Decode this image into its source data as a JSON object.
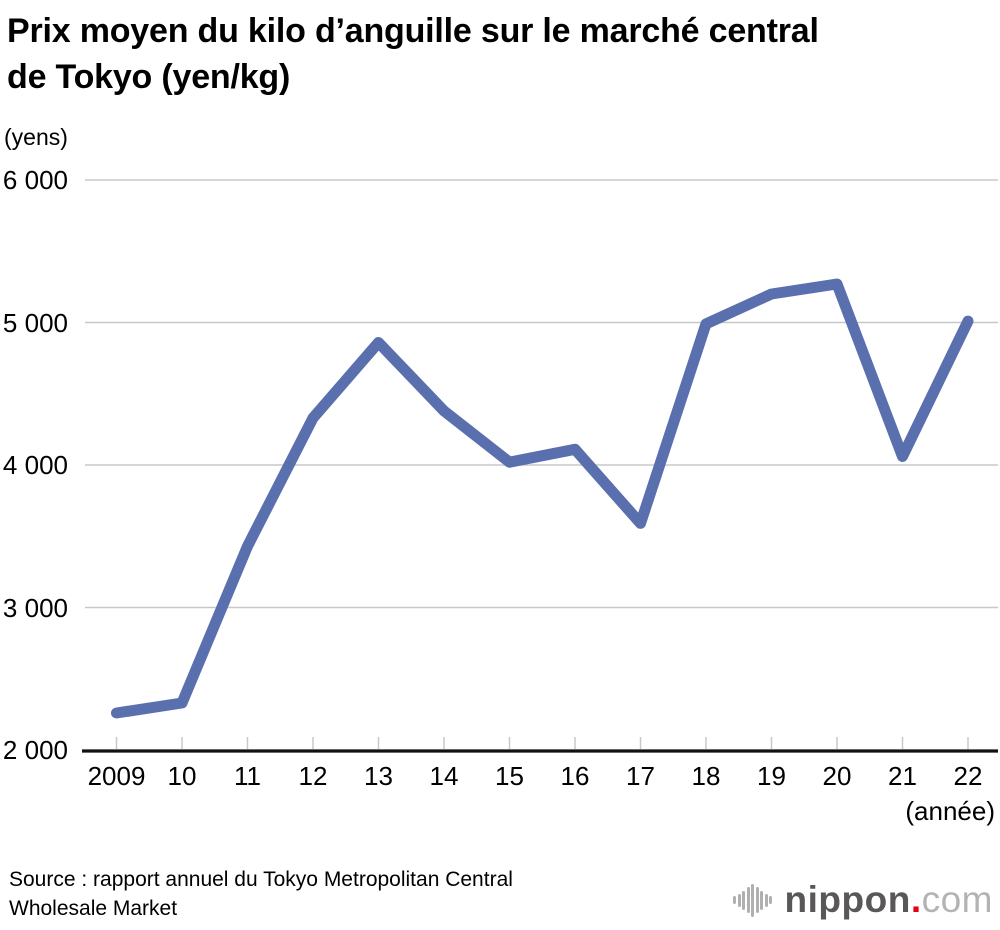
{
  "title": {
    "line1": "Prix moyen du kilo d’anguille sur le marché central",
    "line2": "de Tokyo (yen/kg)"
  },
  "y_unit": "(yens)",
  "x_unit": "(année)",
  "source": {
    "line1": "Source : rapport annuel du Tokyo Metropolitan Central",
    "line2": "Wholesale Market"
  },
  "logo": {
    "brand": "nippon",
    "dot": ".",
    "tld": "com"
  },
  "colors": {
    "line": "#5a6fad",
    "grid": "#c8c8c8",
    "tick": "#c8c8c8",
    "axis": "#111111",
    "text": "#000000",
    "logo_brand": "#595757",
    "logo_tld": "#b3b3b3",
    "logo_dot": "#e60012",
    "logo_bars": "#b0b0b0"
  },
  "chart_data": {
    "type": "line",
    "title": "Prix moyen du kilo d’anguille sur le marché central de Tokyo (yen/kg)",
    "ylabel": "(yens)",
    "xlabel": "(année)",
    "x": [
      2009,
      2010,
      2011,
      2012,
      2013,
      2014,
      2015,
      2016,
      2017,
      2018,
      2019,
      2020,
      2021,
      2022
    ],
    "x_tick_labels": [
      "2009",
      "10",
      "11",
      "12",
      "13",
      "14",
      "15",
      "16",
      "17",
      "18",
      "19",
      "20",
      "21",
      "22"
    ],
    "values": [
      2260,
      2330,
      3430,
      4330,
      4860,
      4380,
      4020,
      4110,
      3590,
      4990,
      5200,
      5270,
      4060,
      5010
    ],
    "y_ticks": [
      2000,
      3000,
      4000,
      5000,
      6000
    ],
    "y_tick_labels": [
      "2 000",
      "3 000",
      "4 000",
      "5 000",
      "6 000"
    ],
    "ylim": [
      2000,
      6000
    ],
    "grid": "horizontal",
    "legend": "none"
  }
}
